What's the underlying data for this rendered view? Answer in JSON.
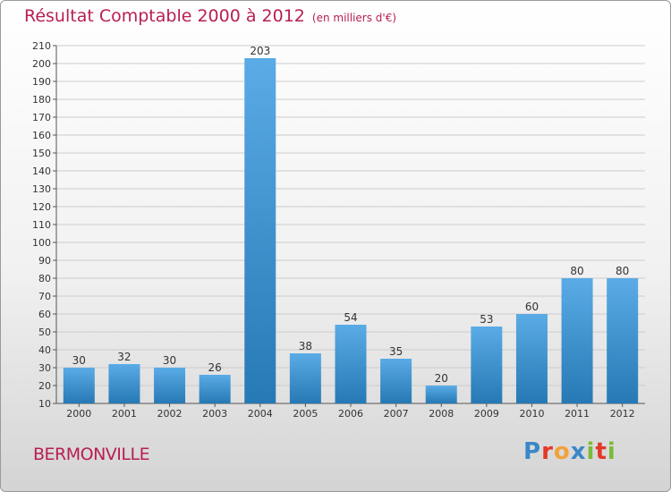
{
  "header": {
    "title": "Résultat Comptable 2000 à 2012",
    "unit": "(en milliers d'€)"
  },
  "footer": {
    "town": "BERMONVILLE",
    "brand": [
      "P",
      "r",
      "o",
      "x",
      "i",
      "t",
      "i"
    ]
  },
  "colors": {
    "title": "#b81e52",
    "bar_top": "#5aabe6",
    "bar_bottom": "#2679b4",
    "grid": "#cccccc",
    "brand": [
      "#3a87c8",
      "#e2392a",
      "#f2a23a",
      "#3a87c8",
      "#7cba3a",
      "#e2392a",
      "#7cba3a"
    ]
  },
  "chart_data": {
    "type": "bar",
    "title": "Résultat Comptable 2000 à 2012",
    "subtitle": "(en milliers d'€)",
    "xlabel": "",
    "ylabel": "",
    "categories": [
      "2000",
      "2001",
      "2002",
      "2003",
      "2004",
      "2005",
      "2006",
      "2007",
      "2008",
      "2009",
      "2010",
      "2011",
      "2012"
    ],
    "values": [
      30,
      32,
      30,
      26,
      203,
      38,
      54,
      35,
      20,
      53,
      60,
      80,
      80
    ],
    "ylim": [
      10,
      210
    ],
    "yticks": [
      10,
      20,
      30,
      40,
      50,
      60,
      70,
      80,
      90,
      100,
      110,
      120,
      130,
      140,
      150,
      160,
      170,
      180,
      190,
      200,
      210
    ],
    "grid": true,
    "data_labels": true
  }
}
